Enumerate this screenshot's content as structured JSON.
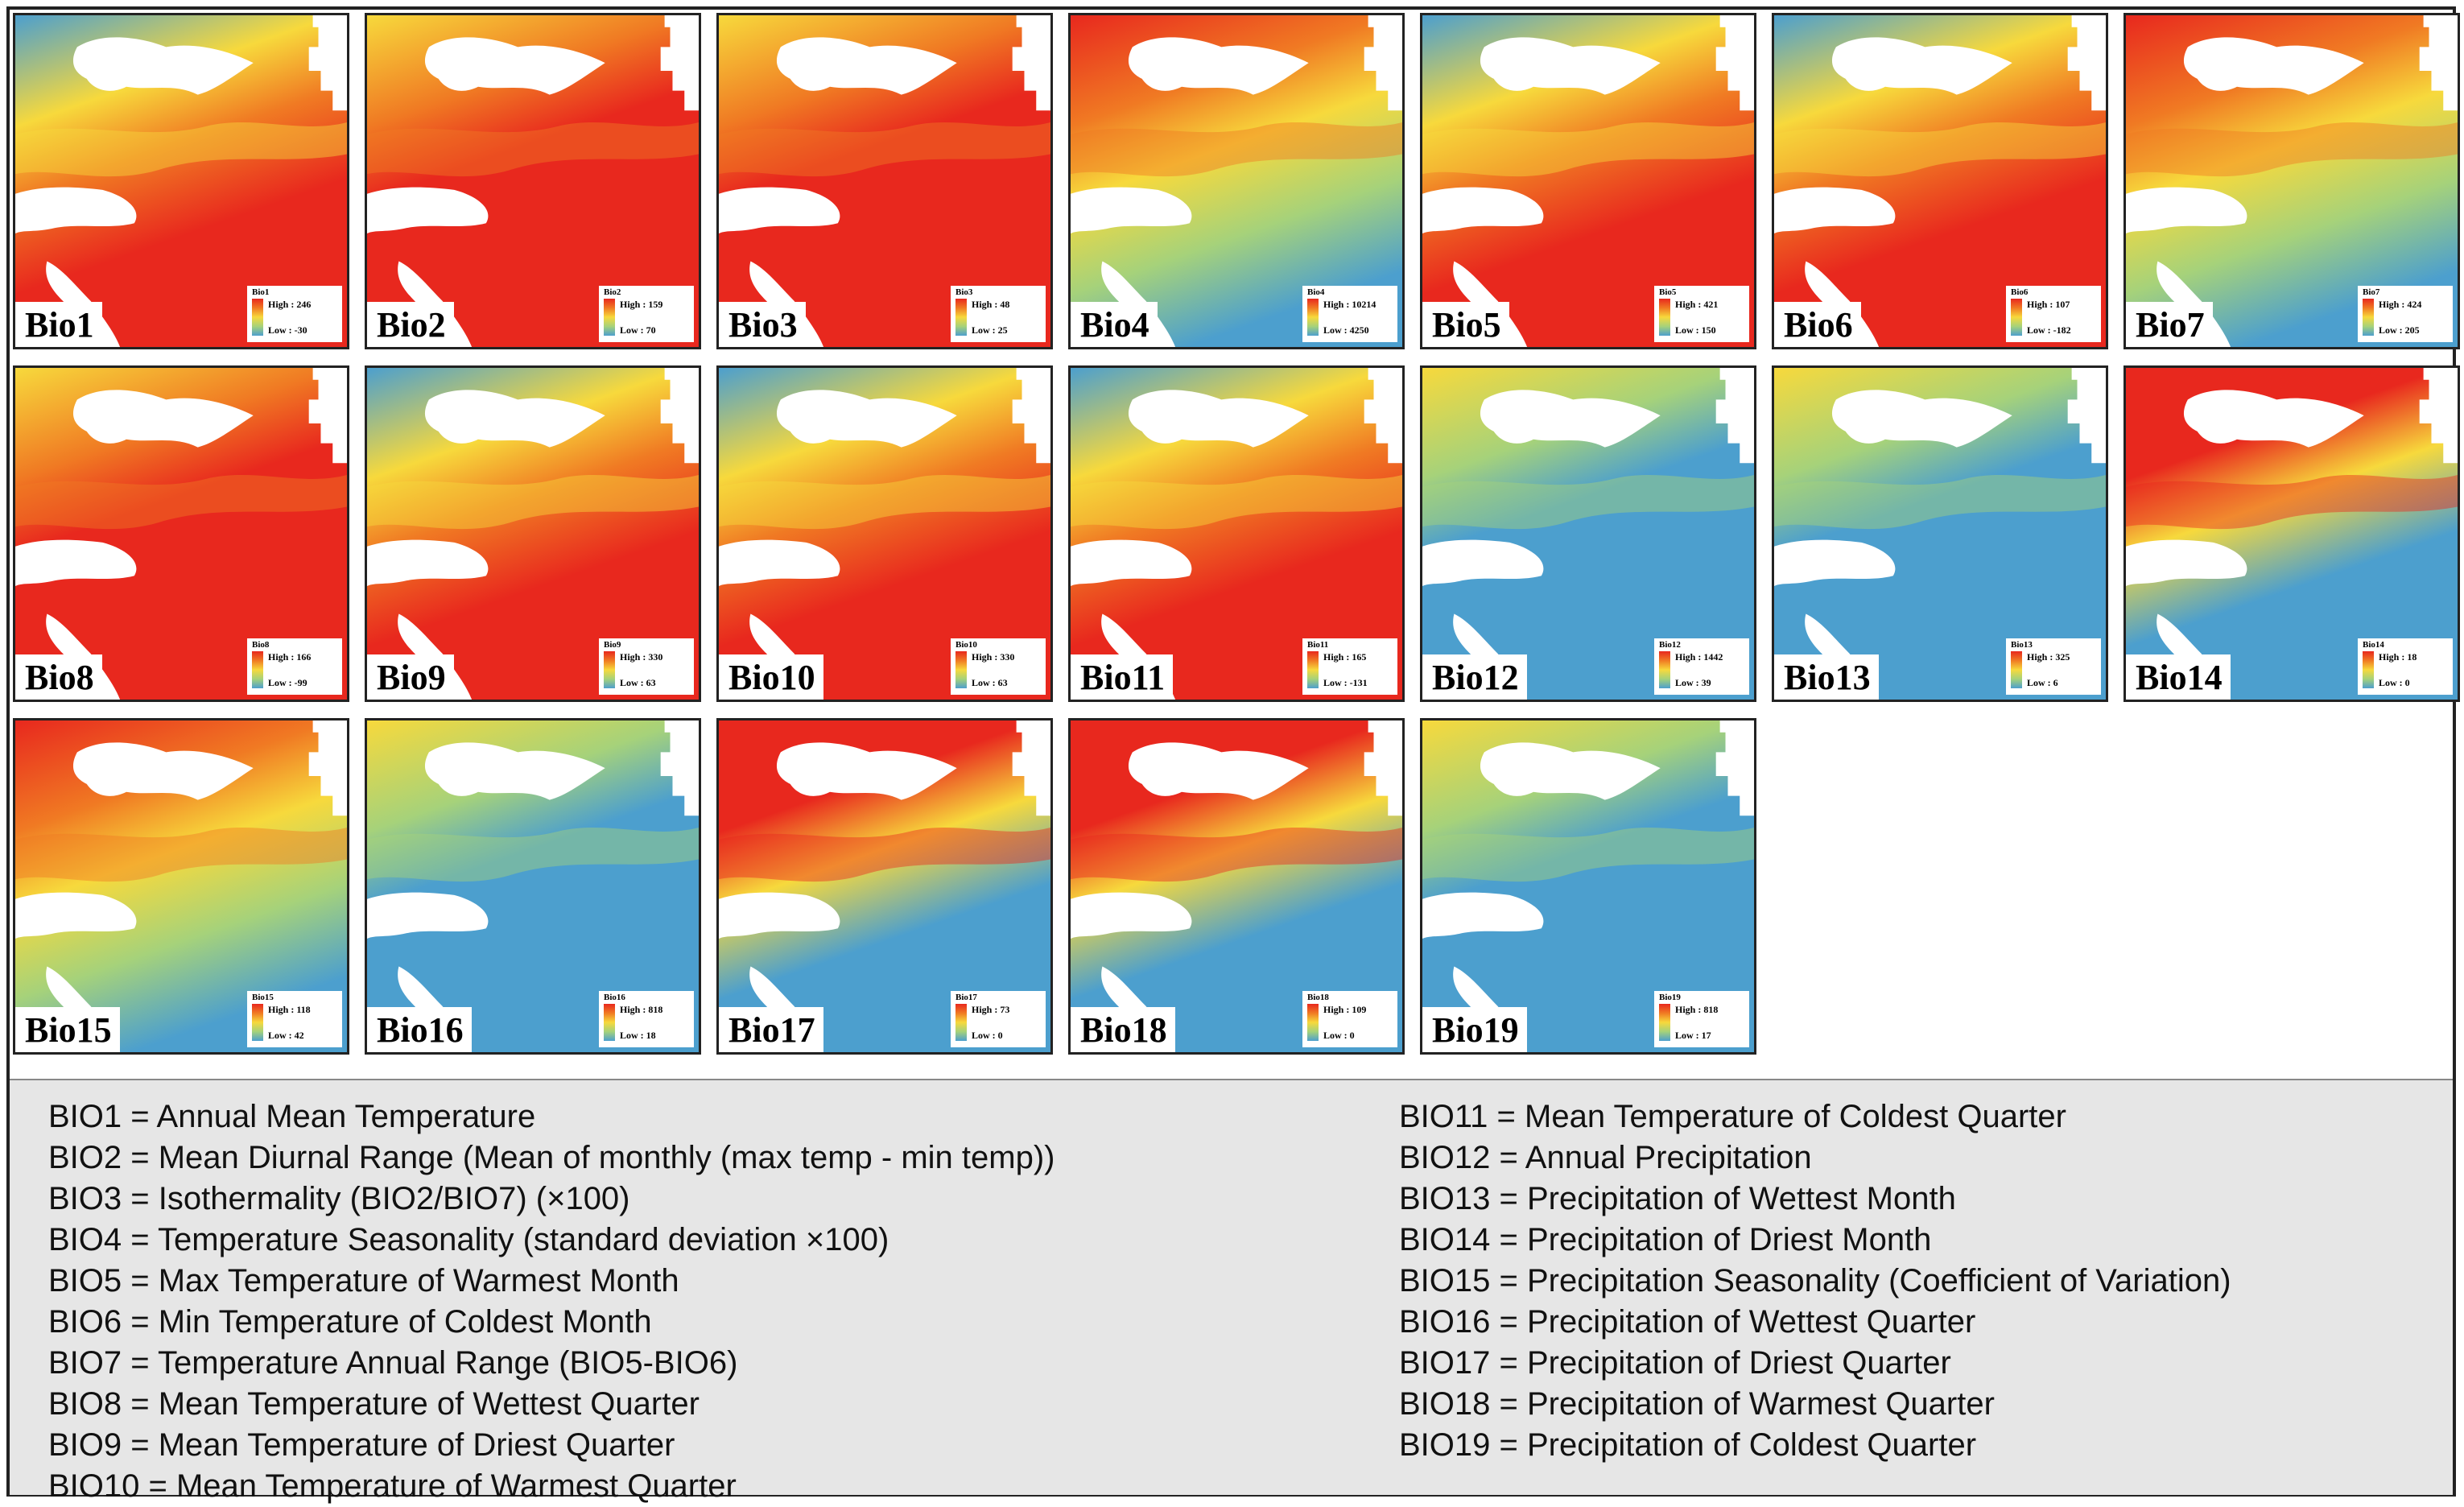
{
  "colors": {
    "ramp_high": "#e8281e",
    "ramp_mid_high": "#f07a23",
    "ramp_mid": "#f7d93c",
    "ramp_mid_low": "#a6d27a",
    "ramp_low": "#4c9fce",
    "land_mask": "#ffffff"
  },
  "panels": [
    {
      "label": "Bio1",
      "legend": {
        "title": "Bio1",
        "high": "High : 246",
        "low": "Low : -30"
      },
      "pattern": "temp"
    },
    {
      "label": "Bio2",
      "legend": {
        "title": "Bio2",
        "high": "High : 159",
        "low": "Low : 70"
      },
      "pattern": "hot"
    },
    {
      "label": "Bio3",
      "legend": {
        "title": "Bio3",
        "high": "High : 48",
        "low": "Low : 25"
      },
      "pattern": "hot"
    },
    {
      "label": "Bio4",
      "legend": {
        "title": "Bio4",
        "high": "High : 10214",
        "low": "Low : 4250"
      },
      "pattern": "seasonal"
    },
    {
      "label": "Bio5",
      "legend": {
        "title": "Bio5",
        "high": "High : 421",
        "low": "Low : 150"
      },
      "pattern": "temp"
    },
    {
      "label": "Bio6",
      "legend": {
        "title": "Bio6",
        "high": "High : 107",
        "low": "Low : -182"
      },
      "pattern": "temp"
    },
    {
      "label": "Bio7",
      "legend": {
        "title": "Bio7",
        "high": "High : 424",
        "low": "Low : 205"
      },
      "pattern": "seasonal"
    },
    {
      "label": "Bio8",
      "legend": {
        "title": "Bio8",
        "high": "High : 166",
        "low": "Low : -99"
      },
      "pattern": "hot"
    },
    {
      "label": "Bio9",
      "legend": {
        "title": "Bio9",
        "high": "High : 330",
        "low": "Low : 63"
      },
      "pattern": "temp"
    },
    {
      "label": "Bio10",
      "legend": {
        "title": "Bio10",
        "high": "High : 330",
        "low": "Low : 63"
      },
      "pattern": "temp"
    },
    {
      "label": "Bio11",
      "legend": {
        "title": "Bio11",
        "high": "High : 165",
        "low": "Low : -131"
      },
      "pattern": "temp"
    },
    {
      "label": "Bio12",
      "legend": {
        "title": "Bio12",
        "high": "High : 1442",
        "low": "Low : 39"
      },
      "pattern": "wet"
    },
    {
      "label": "Bio13",
      "legend": {
        "title": "Bio13",
        "high": "High : 325",
        "low": "Low : 6"
      },
      "pattern": "wet"
    },
    {
      "label": "Bio14",
      "legend": {
        "title": "Bio14",
        "high": "High : 18",
        "low": "Low : 0"
      },
      "pattern": "drynorth"
    },
    {
      "label": "Bio15",
      "legend": {
        "title": "Bio15",
        "high": "High : 118",
        "low": "Low : 42"
      },
      "pattern": "seasonal"
    },
    {
      "label": "Bio16",
      "legend": {
        "title": "Bio16",
        "high": "High : 818",
        "low": "Low : 18"
      },
      "pattern": "wet"
    },
    {
      "label": "Bio17",
      "legend": {
        "title": "Bio17",
        "high": "High : 73",
        "low": "Low : 0"
      },
      "pattern": "drynorth"
    },
    {
      "label": "Bio18",
      "legend": {
        "title": "Bio18",
        "high": "High : 109",
        "low": "Low : 0"
      },
      "pattern": "drynorth"
    },
    {
      "label": "Bio19",
      "legend": {
        "title": "Bio19",
        "high": "High : 818",
        "low": "Low : 17"
      },
      "pattern": "wet"
    }
  ],
  "caption": {
    "left": [
      "BIO1 = Annual Mean Temperature",
      "BIO2 = Mean Diurnal Range (Mean of monthly (max temp - min temp))",
      "BIO3 = Isothermality (BIO2/BIO7) (×100)",
      "BIO4 = Temperature Seasonality (standard deviation ×100)",
      "BIO5 = Max Temperature of Warmest Month",
      "BIO6 = Min Temperature of Coldest Month",
      "BIO7 = Temperature Annual Range (BIO5-BIO6)",
      "BIO8 = Mean Temperature of Wettest Quarter",
      "BIO9 = Mean Temperature of Driest Quarter",
      "BIO10 = Mean Temperature of Warmest Quarter"
    ],
    "right": [
      "BIO11 = Mean Temperature of Coldest Quarter",
      "BIO12 = Annual Precipitation",
      "BIO13 = Precipitation of Wettest Month",
      "BIO14 = Precipitation of Driest Month",
      "BIO15 = Precipitation Seasonality (Coefficient of Variation)",
      "BIO16 = Precipitation of Wettest Quarter",
      "BIO17 = Precipitation of Driest Quarter",
      "BIO18 = Precipitation of Warmest Quarter",
      "BIO19 = Precipitation of Coldest Quarter"
    ]
  }
}
